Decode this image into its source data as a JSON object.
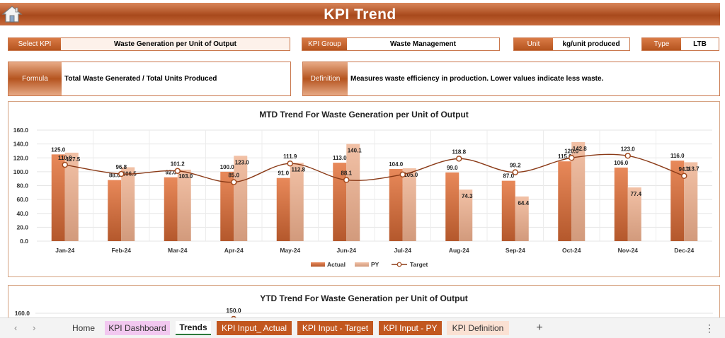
{
  "header": {
    "title": "KPI Trend",
    "home_icon": "home-icon"
  },
  "selectors": {
    "select_kpi_label": "Select KPI",
    "select_kpi_value": "Waste Generation per Unit of Output",
    "kpi_group_label": "KPI Group",
    "kpi_group_value": "Waste Management",
    "unit_label": "Unit",
    "unit_value": "kg/unit produced",
    "type_label": "Type",
    "type_value": "LTB"
  },
  "details": {
    "formula_label": "Formula",
    "formula_value": "Total Waste Generated / Total Units Produced",
    "definition_label": "Definition",
    "definition_value": "Measures waste efficiency in production. Lower values indicate less waste."
  },
  "colors": {
    "accent": "#b5541f",
    "actual": "#e0814f",
    "py": "#eeb99c",
    "target": "#8a3a17"
  },
  "chart_data": [
    {
      "type": "bar",
      "title": "MTD Trend For Waste Generation per Unit of Output",
      "categories": [
        "Jan-24",
        "Feb-24",
        "Mar-24",
        "Apr-24",
        "May-24",
        "Jun-24",
        "Jul-24",
        "Aug-24",
        "Sep-24",
        "Oct-24",
        "Nov-24",
        "Dec-24"
      ],
      "y_ticks": [
        "0.0",
        "20.0",
        "40.0",
        "60.0",
        "80.0",
        "100.0",
        "120.0",
        "140.0",
        "160.0"
      ],
      "ylim": [
        0,
        160
      ],
      "series": [
        {
          "name": "Actual",
          "type": "bar",
          "values": [
            125.0,
            88.0,
            92.0,
            100.0,
            91.0,
            113.0,
            104.0,
            99.0,
            87.0,
            115.0,
            106.0,
            116.0
          ]
        },
        {
          "name": "PY",
          "type": "bar",
          "values": [
            127.5,
            106.5,
            103.0,
            123.0,
            112.8,
            140.1,
            105.0,
            74.3,
            64.4,
            142.8,
            77.4,
            113.7
          ]
        },
        {
          "name": "Target",
          "type": "line",
          "values": [
            110.0,
            96.8,
            101.2,
            85.0,
            111.9,
            88.1,
            96.0,
            118.8,
            99.2,
            120.0,
            123.0,
            94.0
          ]
        }
      ],
      "data_labels": {
        "actual": [
          "125.0",
          "88.0",
          "92.0",
          "100.0",
          "91.0",
          "113.0",
          "104.0",
          "99.0",
          "87.0",
          "115.0",
          "106.0",
          "116.0"
        ],
        "py": [
          "127.5",
          "106.5",
          "103.0",
          "123.0",
          "112.8",
          "140.1",
          "105.0",
          "74.3",
          "64.4",
          "142.8",
          "77.4",
          "113.7"
        ],
        "target": [
          "110.0",
          "96.8",
          "101.2",
          "85.0",
          "111.9",
          "88.1",
          "",
          "118.8",
          "99.2",
          "120.0",
          "123.0",
          "94.0"
        ]
      },
      "legend": [
        "Actual",
        "PY",
        "Target"
      ],
      "legend_position": "bottom",
      "grid": true
    },
    {
      "type": "bar",
      "title": "YTD Trend For Waste Generation per Unit of Output",
      "y_ticks": [
        "160.0"
      ],
      "visible_labels": [
        "150.0"
      ]
    }
  ],
  "tabs": {
    "home": "Home",
    "kpi_dashboard": "KPI Dashboard",
    "trends": "Trends",
    "kpi_input_actual": "KPI Input_ Actual",
    "kpi_input_target": "KPI Input - Target",
    "kpi_input_py": "KPI Input - PY",
    "kpi_definition": "KPI Definition",
    "add": "+",
    "more": "⋮",
    "prev": "‹",
    "next": "›"
  }
}
